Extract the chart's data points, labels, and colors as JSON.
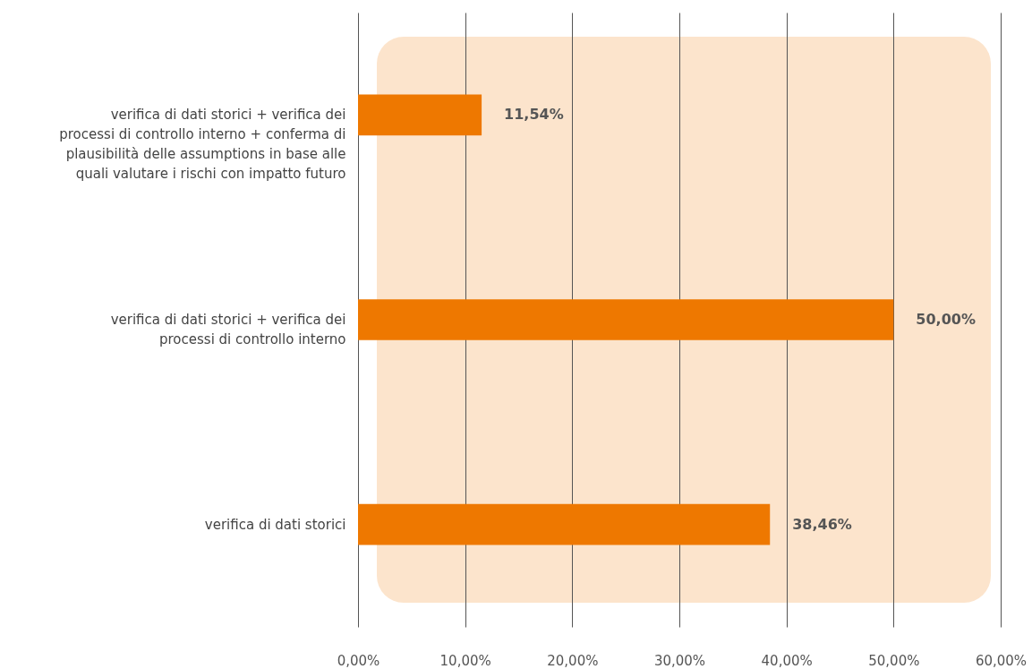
{
  "chart_data": {
    "type": "bar",
    "orientation": "horizontal",
    "categories": [
      "verifica di dati storici + verifica dei processi di controllo interno + conferma di plausibilità delle assumptions in base alle quali valutare i rischi con impatto futuro",
      "verifica di dati storici + verifica dei processi di controllo interno",
      "verifica di dati storici"
    ],
    "values": [
      11.54,
      50.0,
      38.46
    ],
    "color": "#ee7800",
    "value_labels": [
      "11,54%",
      "50,00%",
      "38,46%"
    ],
    "xlim": [
      0,
      60
    ],
    "xticks": [
      {
        "value": 0,
        "label": "0,00%"
      },
      {
        "value": 10,
        "label": "10,00%"
      },
      {
        "value": 20,
        "label": "20,00%"
      },
      {
        "value": 30,
        "label": "30,00%"
      },
      {
        "value": 40,
        "label": "40,00%"
      },
      {
        "value": 50,
        "label": "50,00%"
      },
      {
        "value": 60,
        "label": "60,00%"
      }
    ],
    "grid": "x"
  }
}
